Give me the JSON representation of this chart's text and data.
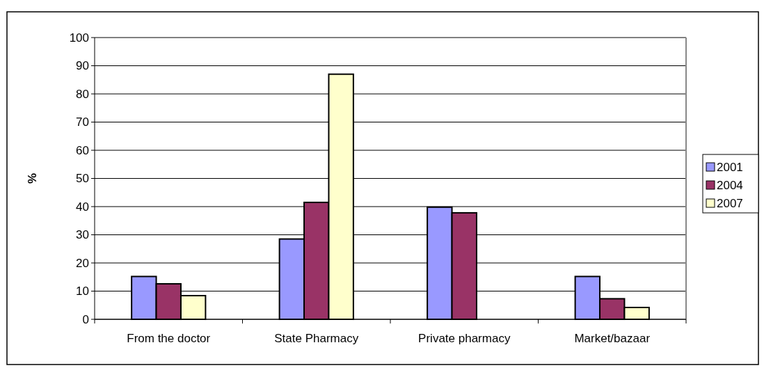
{
  "chart_data": {
    "type": "bar",
    "ylabel": "%",
    "categories": [
      "From the doctor",
      "State Pharmacy",
      "Private pharmacy",
      "Market/bazaar"
    ],
    "series": [
      {
        "name": "2001",
        "color": "#9999ff",
        "values": [
          15.2,
          28.5,
          39.8,
          15.2
        ]
      },
      {
        "name": "2004",
        "color": "#993366",
        "values": [
          12.6,
          41.5,
          37.8,
          7.3
        ]
      },
      {
        "name": "2007",
        "color": "#ffffcc",
        "values": [
          8.4,
          87,
          null,
          4.2
        ]
      }
    ],
    "ylim": [
      0,
      100
    ],
    "yticks": [
      0,
      10,
      20,
      30,
      40,
      50,
      60,
      70,
      80,
      90,
      100
    ],
    "grid": "y",
    "legend": "right"
  }
}
